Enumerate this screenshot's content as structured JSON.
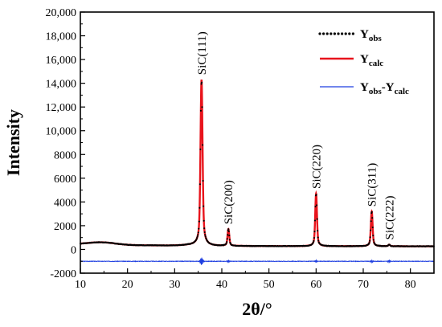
{
  "chart_data": {
    "type": "line",
    "title": "",
    "xlabel": "2θ/°",
    "ylabel": "Intensity",
    "xlim": [
      10,
      85
    ],
    "ylim": [
      -2000,
      20000
    ],
    "x_ticks": [
      10,
      20,
      30,
      40,
      50,
      60,
      70,
      80
    ],
    "y_ticks": [
      -2000,
      0,
      2000,
      4000,
      6000,
      8000,
      10000,
      12000,
      14000,
      16000,
      18000,
      20000
    ],
    "y_tick_labels": [
      "-2000",
      "0",
      "2000",
      "4000",
      "6000",
      "8000",
      "10,000",
      "12,000",
      "14,000",
      "16,000",
      "18,000",
      "20,000"
    ],
    "grid": false,
    "legend_position": "top-right",
    "background": {
      "x": 10,
      "y": 500,
      "hump_x": 14.5,
      "hump_y": 650
    },
    "peaks": [
      {
        "label": "SiC(111)",
        "x": 35.7,
        "y": 14300
      },
      {
        "label": "SiC(200)",
        "x": 41.4,
        "y": 1700
      },
      {
        "label": "SiC(220)",
        "x": 60.0,
        "y": 4700
      },
      {
        "label": "SiC(311)",
        "x": 71.8,
        "y": 3200
      },
      {
        "label": "SiC(222)",
        "x": 75.5,
        "y": 400
      }
    ],
    "difference_offset": -1000,
    "series": [
      {
        "name_main": "Y",
        "name_sub": "obs",
        "color": "#000000",
        "style": "dotted"
      },
      {
        "name_main": "Y",
        "name_sub": "calc",
        "color": "#e8141c",
        "style": "solid"
      },
      {
        "name_main": "Y",
        "name_sub": "obs",
        "name_mid": "-Y",
        "name_sub2": "calc",
        "color": "#1f3fe0",
        "style": "solid"
      }
    ]
  }
}
